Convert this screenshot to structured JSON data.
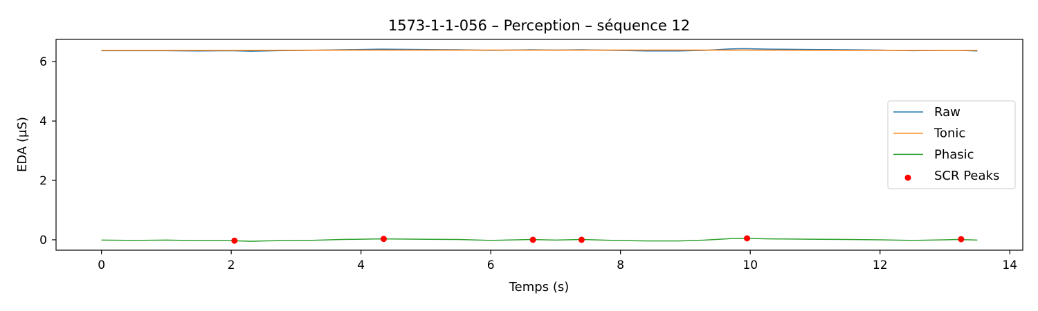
{
  "chart_data": {
    "type": "line",
    "title": "1573-1-1-056 – Perception – séquence 12",
    "xlabel": "Temps (s)",
    "ylabel": "EDA (µS)",
    "xlim": [
      -0.7,
      14.2
    ],
    "ylim": [
      -0.35,
      6.75
    ],
    "xticks": [
      0,
      2,
      4,
      6,
      8,
      10,
      12,
      14
    ],
    "yticks": [
      0,
      2,
      4,
      6
    ],
    "grid": false,
    "legend_position": "center-right",
    "series": [
      {
        "name": "Raw",
        "kind": "line",
        "color": "#1f77b4",
        "x": [
          0,
          0.5,
          1.0,
          1.5,
          2.0,
          2.3,
          2.7,
          3.2,
          3.7,
          4.3,
          4.9,
          5.5,
          6.0,
          6.6,
          7.0,
          7.4,
          7.9,
          8.4,
          8.9,
          9.3,
          9.7,
          9.9,
          10.3,
          10.9,
          11.5,
          12.0,
          12.5,
          13.0,
          13.2,
          13.5
        ],
        "y": [
          6.37,
          6.37,
          6.37,
          6.36,
          6.37,
          6.35,
          6.37,
          6.38,
          6.4,
          6.42,
          6.41,
          6.4,
          6.38,
          6.4,
          6.39,
          6.4,
          6.38,
          6.36,
          6.36,
          6.38,
          6.43,
          6.44,
          6.42,
          6.41,
          6.4,
          6.39,
          6.37,
          6.38,
          6.38,
          6.36
        ]
      },
      {
        "name": "Tonic",
        "kind": "line",
        "color": "#ff7f0e",
        "x": [
          0,
          2.0,
          4.0,
          6.0,
          8.0,
          10.0,
          12.0,
          13.5
        ],
        "y": [
          6.38,
          6.38,
          6.39,
          6.39,
          6.39,
          6.39,
          6.38,
          6.38
        ]
      },
      {
        "name": "Phasic",
        "kind": "line",
        "color": "#2ca02c",
        "x": [
          0,
          0.5,
          1.0,
          1.5,
          2.0,
          2.3,
          2.7,
          3.2,
          3.7,
          4.3,
          4.9,
          5.5,
          6.0,
          6.6,
          7.0,
          7.4,
          7.9,
          8.4,
          8.9,
          9.3,
          9.7,
          9.9,
          10.3,
          10.9,
          11.5,
          12.0,
          12.5,
          13.0,
          13.2,
          13.5
        ],
        "y": [
          -0.01,
          -0.02,
          -0.01,
          -0.03,
          -0.03,
          -0.05,
          -0.03,
          -0.02,
          0.01,
          0.03,
          0.02,
          0.01,
          -0.02,
          0.01,
          -0.01,
          0.01,
          -0.02,
          -0.04,
          -0.04,
          -0.01,
          0.04,
          0.05,
          0.03,
          0.02,
          0.01,
          0.0,
          -0.02,
          0.0,
          0.01,
          -0.01
        ]
      },
      {
        "name": "SCR Peaks",
        "kind": "scatter",
        "color": "#ff0000",
        "x": [
          2.05,
          4.35,
          6.65,
          7.4,
          9.95,
          13.25
        ],
        "y": [
          -0.03,
          0.03,
          0.0,
          0.0,
          0.05,
          0.02
        ]
      }
    ]
  }
}
